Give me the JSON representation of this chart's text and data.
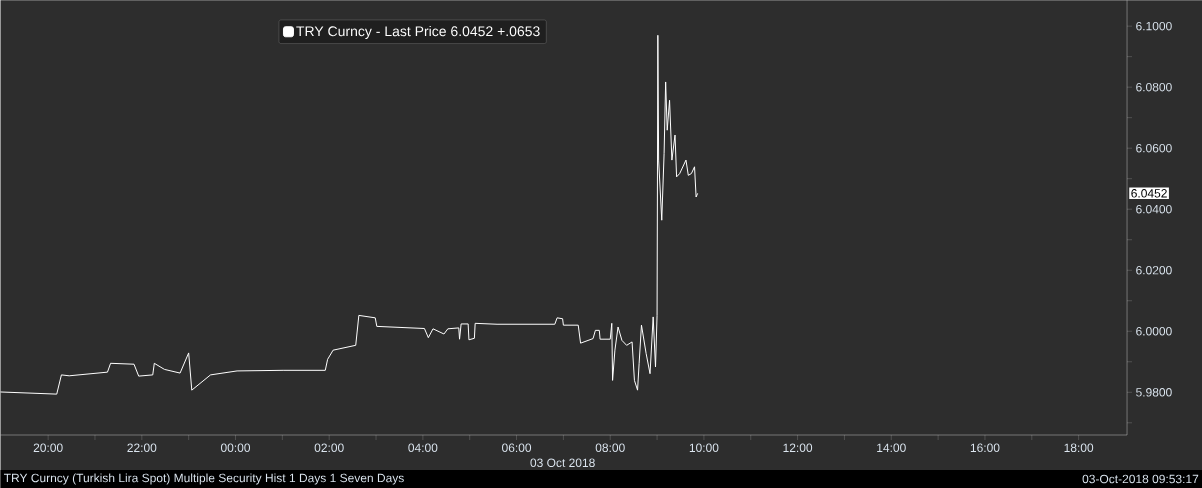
{
  "chart_data": {
    "type": "line",
    "xlabel": "03 Oct 2018",
    "annotations": [
      "TRY Curncy (Turkish Lira Spot) Multiple Security Hist  1 Days 1 Seven Days",
      "03-Oct-2018 09:53:17",
      "6.0452"
    ],
    "series": [
      {
        "name": "TRY Curncy - Last Price 6.0452  +.0653",
        "color": "#ffffff",
        "x": [
          "2018-10-02T18:59",
          "2018-10-02T20:11",
          "2018-10-02T20:17",
          "2018-10-02T20:27",
          "2018-10-02T21:16",
          "2018-10-02T21:20",
          "2018-10-02T21:50",
          "2018-10-02T21:56",
          "2018-10-02T22:14",
          "2018-10-02T22:16",
          "2018-10-02T22:29",
          "2018-10-02T22:49",
          "2018-10-02T23:00",
          "2018-10-02T23:04",
          "2018-10-02T23:28",
          "2018-10-03T00:02",
          "2018-10-03T01:01",
          "2018-10-03T01:55",
          "2018-10-03T01:58",
          "2018-10-03T02:05",
          "2018-10-03T02:34",
          "2018-10-03T02:38",
          "2018-10-03T02:59",
          "2018-10-03T03:01",
          "2018-10-03T04:02",
          "2018-10-03T04:07",
          "2018-10-03T04:13",
          "2018-10-03T04:27",
          "2018-10-03T04:32",
          "2018-10-03T04:46",
          "2018-10-03T04:47",
          "2018-10-03T04:49",
          "2018-10-03T04:58",
          "2018-10-03T04:59",
          "2018-10-03T05:06",
          "2018-10-03T05:07",
          "2018-10-03T05:35",
          "2018-10-03T06:49",
          "2018-10-03T06:52",
          "2018-10-03T06:59",
          "2018-10-03T07:00",
          "2018-10-03T07:19",
          "2018-10-03T07:22",
          "2018-10-03T07:38",
          "2018-10-03T07:41",
          "2018-10-03T07:46",
          "2018-10-03T07:47",
          "2018-10-03T08:00",
          "2018-10-03T08:02",
          "2018-10-03T08:03",
          "2018-10-03T08:06",
          "2018-10-03T08:10",
          "2018-10-03T08:15",
          "2018-10-03T08:21",
          "2018-10-03T08:28",
          "2018-10-03T08:31",
          "2018-10-03T08:35",
          "2018-10-03T08:37",
          "2018-10-03T08:40",
          "2018-10-03T08:46",
          "2018-10-03T08:51",
          "2018-10-03T08:55",
          "2018-10-03T08:58",
          "2018-10-03T09:00",
          "2018-10-03T09:01",
          "2018-10-03T09:02",
          "2018-10-03T09:06",
          "2018-10-03T09:09",
          "2018-10-03T09:11",
          "2018-10-03T09:13",
          "2018-10-03T09:16",
          "2018-10-03T09:19",
          "2018-10-03T09:23",
          "2018-10-03T09:25",
          "2018-10-03T09:29",
          "2018-10-03T09:37",
          "2018-10-03T09:40",
          "2018-10-03T09:44",
          "2018-10-03T09:48",
          "2018-10-03T09:50",
          "2018-10-03T09:52"
        ],
        "values": [
          5.9801,
          5.9794,
          5.9857,
          5.9854,
          5.9866,
          5.9895,
          5.9892,
          5.9853,
          5.9857,
          5.9895,
          5.9875,
          5.9863,
          5.9929,
          5.9807,
          5.9857,
          5.987,
          5.9872,
          5.9872,
          5.9908,
          5.9938,
          5.9954,
          6.0052,
          6.0044,
          6.0016,
          6.0009,
          5.9979,
          6.0008,
          5.9991,
          6.0008,
          6.0011,
          5.9974,
          6.0024,
          6.0024,
          5.9972,
          5.9977,
          6.0026,
          6.0023,
          6.0023,
          6.0044,
          6.0041,
          6.002,
          6.002,
          5.9961,
          5.9976,
          6.0003,
          6.0003,
          5.9974,
          5.9974,
          6.0026,
          5.9839,
          5.9938,
          6.0014,
          5.997,
          5.9954,
          5.9965,
          5.9839,
          5.9807,
          5.9894,
          6.002,
          5.9927,
          5.9861,
          6.0047,
          5.9883,
          6.0052,
          6.097,
          6.0561,
          6.0364,
          6.0583,
          6.0817,
          6.0659,
          6.0757,
          6.0561,
          6.0643,
          6.0506,
          6.0517,
          6.0561,
          6.0511,
          6.0517,
          6.0539,
          6.044,
          6.0452
        ]
      }
    ],
    "xlim": [
      "2018-10-02T18:59",
      "2018-10-03T19:02"
    ],
    "xticks": [
      {
        "value": "2018-10-02T20:00",
        "label": "20:00"
      },
      {
        "value": "2018-10-02T21:00",
        "label": null
      },
      {
        "value": "2018-10-02T22:00",
        "label": "22:00"
      },
      {
        "value": "2018-10-02T23:00",
        "label": null
      },
      {
        "value": "2018-10-03T00:00",
        "label": "00:00"
      },
      {
        "value": "2018-10-03T01:00",
        "label": null
      },
      {
        "value": "2018-10-03T02:00",
        "label": "02:00"
      },
      {
        "value": "2018-10-03T03:00",
        "label": null
      },
      {
        "value": "2018-10-03T04:00",
        "label": "04:00"
      },
      {
        "value": "2018-10-03T05:00",
        "label": null
      },
      {
        "value": "2018-10-03T06:00",
        "label": "06:00"
      },
      {
        "value": "2018-10-03T07:00",
        "label": null
      },
      {
        "value": "2018-10-03T08:00",
        "label": "08:00"
      },
      {
        "value": "2018-10-03T09:00",
        "label": null
      },
      {
        "value": "2018-10-03T10:00",
        "label": "10:00"
      },
      {
        "value": "2018-10-03T11:00",
        "label": null
      },
      {
        "value": "2018-10-03T12:00",
        "label": "12:00"
      },
      {
        "value": "2018-10-03T13:00",
        "label": null
      },
      {
        "value": "2018-10-03T14:00",
        "label": "14:00"
      },
      {
        "value": "2018-10-03T15:00",
        "label": null
      },
      {
        "value": "2018-10-03T16:00",
        "label": "16:00"
      },
      {
        "value": "2018-10-03T17:00",
        "label": null
      },
      {
        "value": "2018-10-03T18:00",
        "label": "18:00"
      }
    ],
    "ylim": [
      5.966,
      6.1085
    ],
    "yticks": [
      {
        "value": 5.97,
        "label": null
      },
      {
        "value": 5.98,
        "label": "5.9800"
      },
      {
        "value": 5.99,
        "label": null
      },
      {
        "value": 6.0,
        "label": "6.0000"
      },
      {
        "value": 6.01,
        "label": null
      },
      {
        "value": 6.02,
        "label": "6.0200"
      },
      {
        "value": 6.03,
        "label": null
      },
      {
        "value": 6.04,
        "label": "6.0400"
      },
      {
        "value": 6.05,
        "label": null
      },
      {
        "value": 6.06,
        "label": "6.0600"
      },
      {
        "value": 6.07,
        "label": null
      },
      {
        "value": 6.08,
        "label": "6.0800"
      },
      {
        "value": 6.09,
        "label": null
      },
      {
        "value": 6.1,
        "label": "6.1000"
      }
    ],
    "legend": "top",
    "marker": "none",
    "line_style": "solid"
  }
}
